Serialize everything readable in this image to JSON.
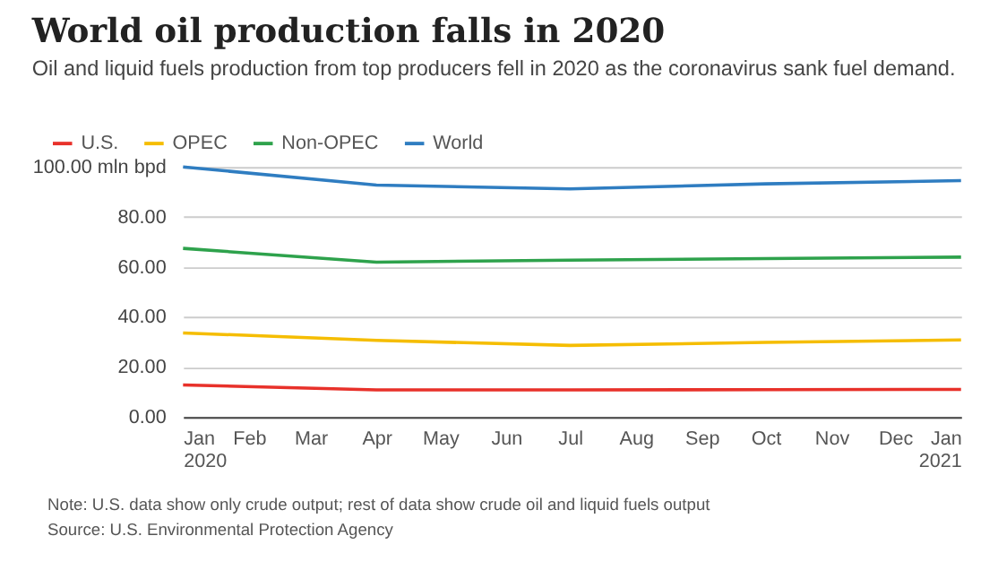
{
  "chart_data": {
    "type": "line",
    "title": "World oil production falls in 2020",
    "subtitle": "Oil and liquid fuels production from top producers fell in 2020 as the coronavirus sank fuel demand.",
    "x": [
      "2020-01",
      "2020-04",
      "2020-07",
      "2020-10",
      "2021-01"
    ],
    "series": [
      {
        "name": "U.S.",
        "color": "#e8312a",
        "values": [
          12.8,
          10.8,
          10.8,
          10.9,
          11.0
        ]
      },
      {
        "name": "OPEC",
        "color": "#f5bd00",
        "values": [
          33.6,
          30.6,
          28.6,
          29.8,
          30.8
        ]
      },
      {
        "name": "Non-OPEC",
        "color": "#2ea24c",
        "values": [
          67.4,
          61.9,
          62.7,
          63.3,
          63.9
        ]
      },
      {
        "name": "World",
        "color": "#2f7dc1",
        "values": [
          100,
          92.7,
          91.2,
          93.2,
          94.5
        ]
      }
    ],
    "xlim": [
      "2020-01",
      "2021-01"
    ],
    "xticks": [
      {
        "value": "2020-01",
        "label": "Jan 2020"
      },
      {
        "value": "2020-02",
        "label": "Feb"
      },
      {
        "value": "2020-03",
        "label": "Mar"
      },
      {
        "value": "2020-04",
        "label": "Apr"
      },
      {
        "value": "2020-05",
        "label": "May"
      },
      {
        "value": "2020-06",
        "label": "Jun"
      },
      {
        "value": "2020-07",
        "label": "Jul"
      },
      {
        "value": "2020-08",
        "label": "Aug"
      },
      {
        "value": "2020-09",
        "label": "Sep"
      },
      {
        "value": "2020-10",
        "label": "Oct"
      },
      {
        "value": "2020-11",
        "label": "Nov"
      },
      {
        "value": "2020-12",
        "label": "Dec"
      },
      {
        "value": "2021-01",
        "label": "Jan 2021"
      }
    ],
    "ylim": [
      0,
      100
    ],
    "yticks": [
      {
        "value": 0,
        "label": "0.00"
      },
      {
        "value": 20,
        "label": "20.00"
      },
      {
        "value": 40,
        "label": "40.00"
      },
      {
        "value": 60,
        "label": "60.00"
      },
      {
        "value": 80,
        "label": "80.00"
      },
      {
        "value": 100,
        "label": "100.00 mln bpd"
      }
    ],
    "grid": "y",
    "legend": "top left",
    "marker": "none",
    "line_style": "solid",
    "annotations": [
      "Note: U.S. data show only crude output; rest of data show crude oil and liquid fuels output",
      "Source: U.S. Environmental Protection Agency"
    ]
  }
}
